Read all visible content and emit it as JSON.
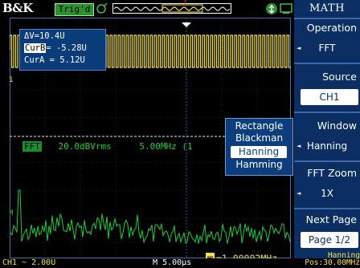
{
  "status_bar": {
    "brand": "B&K",
    "trigger_status": "Trig'd",
    "icons": [
      "acquire-icon",
      "trigger-overview-icon",
      "usb-icon",
      "channel-icon"
    ]
  },
  "measurements": {
    "delta_v": "ΔV=10.4U",
    "cur_b_tag": "CurB",
    "cur_b_value": "= -5.28U",
    "cur_a": "CurA = 5.12U"
  },
  "fft_info": {
    "tag": "FFT",
    "scale": "20.0dBVrms",
    "freq_div": "5.00MHz (1"
  },
  "window_popup": {
    "options": [
      "Rectangle",
      "Blackman",
      "Hanning",
      "Hamming"
    ],
    "selected": "Hanning"
  },
  "cursor_readout": {
    "value": "=1.00002MHz"
  },
  "bottom_bar": {
    "ch1_scale": "CH1 ~ 2.00U",
    "timebase": "M 5.00µs"
  },
  "menu": {
    "title": "MATH",
    "items": [
      {
        "label": "Operation",
        "value": "FFT"
      },
      {
        "label": "Source",
        "value": "CH1"
      },
      {
        "label": "Window",
        "value": "Hanning"
      },
      {
        "label": "FFT Zoom",
        "value": "1X"
      },
      {
        "label": "Next Page",
        "value": "Page 1/2"
      }
    ]
  },
  "fft_status": {
    "window": "Hanning",
    "pos": "Pos:30.00MHz"
  },
  "colors": {
    "ch1": "#f4e24a",
    "math": "#1fcf3a",
    "menu_bg": "#0b2e63",
    "popup_bg": "#0c3d7d"
  }
}
